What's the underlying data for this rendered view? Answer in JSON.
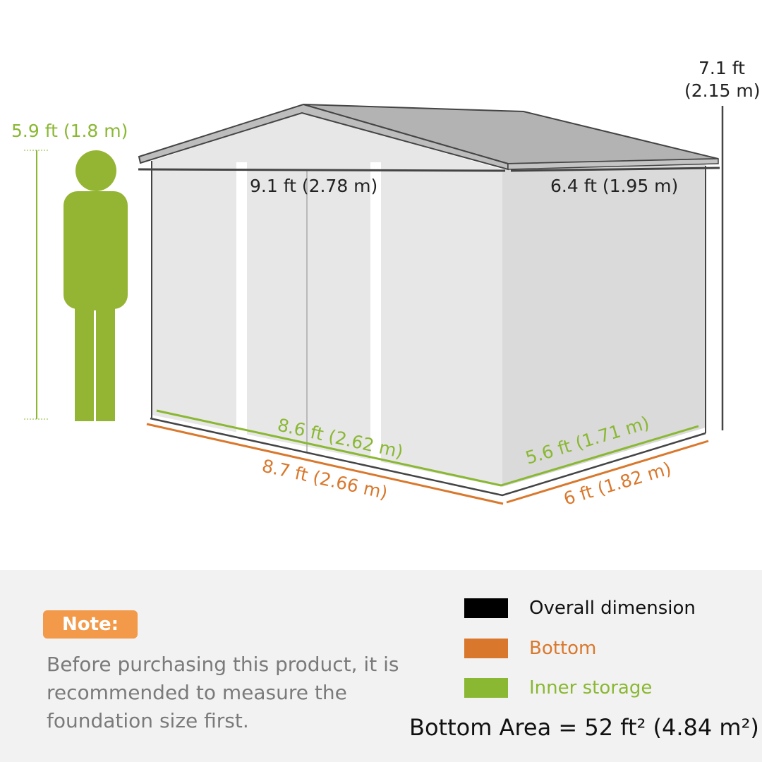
{
  "colors": {
    "overall": "#000000",
    "bottom": "#d9782c",
    "inner": "#8ab833",
    "person": "#93b533",
    "note": "#f29a4a"
  },
  "dimensions": {
    "person_height": "5.9 ft (1.8 m)",
    "total_height_ft": "7.1 ft",
    "total_height_m": "(2.15 m)",
    "overall_width": "9.1 ft (2.78 m)",
    "overall_depth": "6.4 ft (1.95 m)",
    "inner_width": "8.6 ft (2.62 m)",
    "inner_depth": "5.6 ft (1.71 m)",
    "bottom_width": "8.7 ft (2.66 m)",
    "bottom_depth": "6 ft (1.82 m)"
  },
  "note": {
    "label": "Note:",
    "text": "Before purchasing this product, it is recommended to measure the foundation size first."
  },
  "legend": [
    {
      "label": "Overall dimension",
      "color": "#000000"
    },
    {
      "label": "Bottom",
      "color": "#d9782c"
    },
    {
      "label": "Inner storage",
      "color": "#8ab833"
    }
  ],
  "bottom_area": "Bottom Area = 52 ft² (4.84 m²)"
}
